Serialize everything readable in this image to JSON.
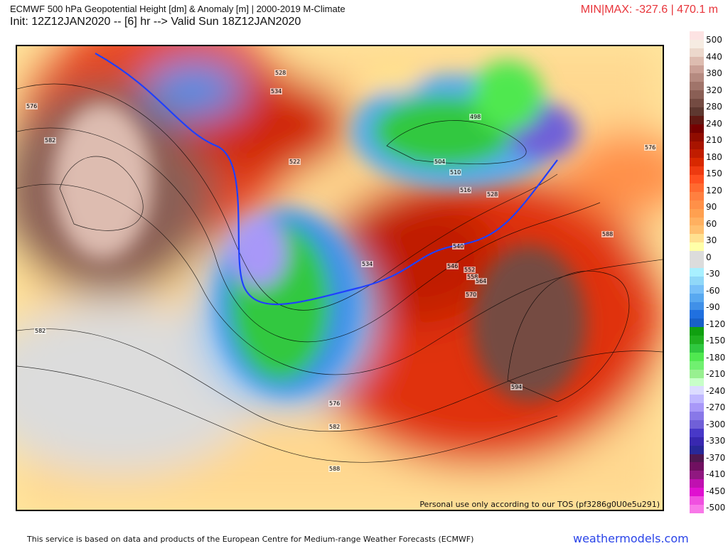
{
  "header": {
    "title": "ECMWF 500 hPa Geopotential Height [dm] & Anomaly [m] | 2000-2019 M-Climate",
    "subtitle": "Init: 12Z12JAN2020 -- [6] hr --> Valid Sun 18Z12JAN2020",
    "minmax": "MIN|MAX: -327.6 | 470.1 m"
  },
  "map": {
    "contour_labels": [
      "576",
      "582",
      "582",
      "528",
      "534",
      "522",
      "498",
      "504",
      "510",
      "516",
      "528",
      "576",
      "588",
      "534",
      "540",
      "546",
      "552",
      "558",
      "564",
      "570",
      "594",
      "576",
      "582",
      "588"
    ],
    "watermark": "Personal use only according to our TOS (pf3286g0U0e5u291)"
  },
  "colorbar": {
    "labels": [
      "500",
      "440",
      "380",
      "320",
      "280",
      "240",
      "210",
      "180",
      "150",
      "120",
      "90",
      "60",
      "30",
      "0",
      "-30",
      "-60",
      "-90",
      "-120",
      "-150",
      "-180",
      "-210",
      "-240",
      "-270",
      "-300",
      "-330",
      "-370",
      "-410",
      "-450",
      "-500"
    ],
    "colors": [
      "#fde3e3",
      "#f6ece2",
      "#ecd8cc",
      "#ddbcb0",
      "#caa096",
      "#b58a80",
      "#a0746a",
      "#8a5f55",
      "#744b42",
      "#5e3830",
      "#601a14",
      "#760000",
      "#900c00",
      "#a81400",
      "#c01c00",
      "#d82800",
      "#ee3a10",
      "#ff5020",
      "#ff6a30",
      "#ff8040",
      "#ff9048",
      "#ffa050",
      "#ffb060",
      "#ffc070",
      "#ffe090",
      "#ffffa8",
      "#dcdcdc",
      "#dcdcdc",
      "#a8f0ff",
      "#90d8f8",
      "#78c0f8",
      "#58a8f0",
      "#4090e8",
      "#2070e0",
      "#1860c8",
      "#10a010",
      "#20b020",
      "#30c840",
      "#50e850",
      "#70f070",
      "#98f090",
      "#c8ffc8",
      "#dcdcff",
      "#c0b8ff",
      "#a898f8",
      "#8878e8",
      "#7060d8",
      "#4838c8",
      "#3828b0",
      "#282898",
      "#501850",
      "#701060",
      "#901880",
      "#c010b0",
      "#e010d0",
      "#f050e0",
      "#f878e8"
    ]
  },
  "footer": {
    "credit": "This service is based on data and products of the European Centre for Medium-range Weather Forecasts (ECMWF)",
    "brand": "weathermodels.com"
  }
}
